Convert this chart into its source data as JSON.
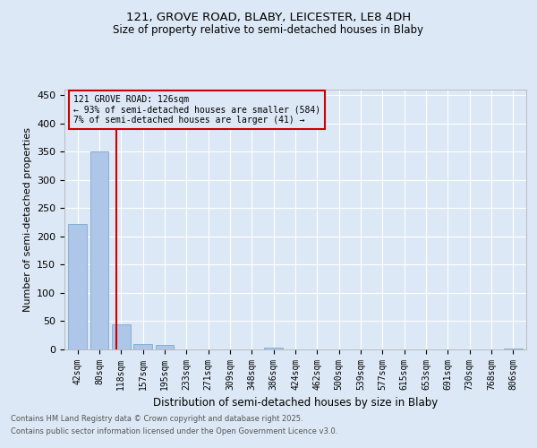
{
  "title1": "121, GROVE ROAD, BLABY, LEICESTER, LE8 4DH",
  "title2": "Size of property relative to semi-detached houses in Blaby",
  "xlabel": "Distribution of semi-detached houses by size in Blaby",
  "ylabel": "Number of semi-detached properties",
  "bar_labels": [
    "42sqm",
    "80sqm",
    "118sqm",
    "157sqm",
    "195sqm",
    "233sqm",
    "271sqm",
    "309sqm",
    "348sqm",
    "386sqm",
    "424sqm",
    "462sqm",
    "500sqm",
    "539sqm",
    "577sqm",
    "615sqm",
    "653sqm",
    "691sqm",
    "730sqm",
    "768sqm",
    "806sqm"
  ],
  "bar_values": [
    222,
    351,
    45,
    10,
    8,
    0,
    0,
    0,
    0,
    3,
    0,
    0,
    0,
    0,
    0,
    0,
    0,
    0,
    0,
    0,
    2
  ],
  "bar_color": "#aec6e8",
  "bar_edgecolor": "#7aaad0",
  "property_line_label": "121 GROVE ROAD: 126sqm",
  "annotation_smaller": "← 93% of semi-detached houses are smaller (584)",
  "annotation_larger": "7% of semi-detached houses are larger (41) →",
  "box_edgecolor": "#cc0000",
  "vline_color": "#cc0000",
  "vline_x": 1.8,
  "bg_color": "#dce8f5",
  "grid_color": "#ffffff",
  "ylim": [
    0,
    460
  ],
  "yticks": [
    0,
    50,
    100,
    150,
    200,
    250,
    300,
    350,
    400,
    450
  ],
  "footnote1": "Contains HM Land Registry data © Crown copyright and database right 2025.",
  "footnote2": "Contains public sector information licensed under the Open Government Licence v3.0."
}
